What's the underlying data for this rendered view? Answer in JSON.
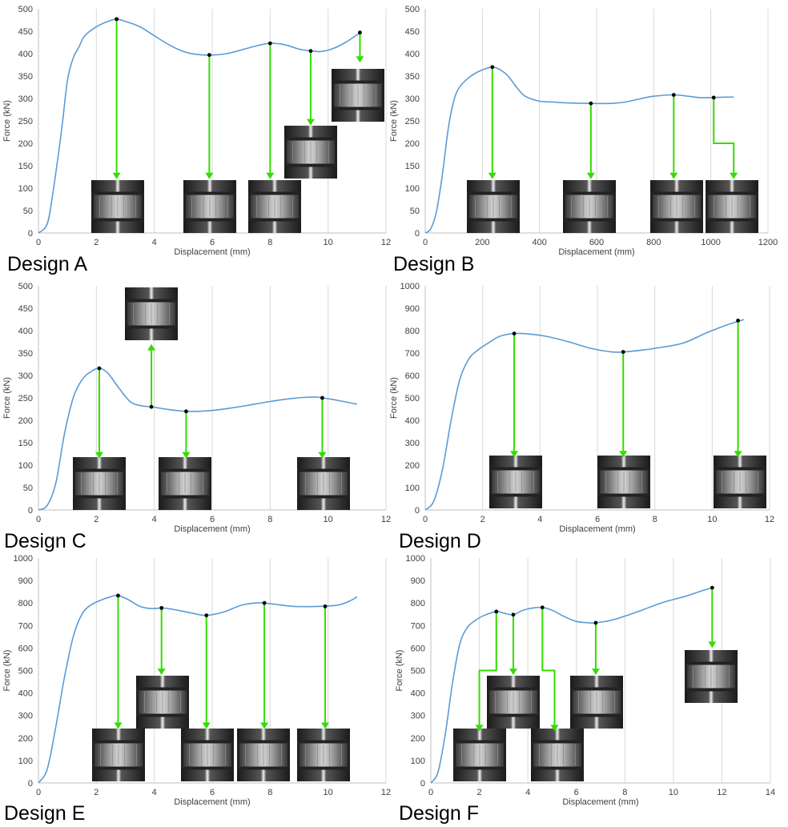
{
  "chart_data": [
    {
      "type": "line",
      "design_label": "Design A",
      "xlabel": "Displacement (mm)",
      "ylabel": "Force (kN)",
      "xlim": [
        0,
        12
      ],
      "ylim": [
        0,
        500
      ],
      "xticks": [
        0,
        2,
        4,
        6,
        8,
        10,
        12
      ],
      "yticks": [
        0,
        50,
        100,
        150,
        200,
        250,
        300,
        350,
        400,
        450,
        500
      ],
      "grid": "vertical",
      "line_color": "#5b9bd5",
      "arrow_color": "#33dd00",
      "series": [
        {
          "x": [
            0,
            0.3,
            0.5,
            0.8,
            1.0,
            1.2,
            1.4,
            1.6,
            2.0,
            2.4,
            2.7,
            3.0,
            3.5,
            4.0,
            4.5,
            5.0,
            5.5,
            6.0,
            6.5,
            7.0,
            7.5,
            8.0,
            8.5,
            9.0,
            9.4,
            9.8,
            10.2,
            10.6,
            11.0,
            11.1
          ],
          "y": [
            0,
            20,
            90,
            230,
            340,
            390,
            415,
            440,
            460,
            472,
            477,
            472,
            460,
            440,
            420,
            405,
            398,
            397,
            400,
            408,
            417,
            423,
            420,
            410,
            406,
            405,
            412,
            425,
            442,
            447
          ]
        }
      ],
      "markers": [
        {
          "x": 2.7,
          "y": 477
        },
        {
          "x": 5.9,
          "y": 397
        },
        {
          "x": 8.0,
          "y": 423
        },
        {
          "x": 9.4,
          "y": 406
        },
        {
          "x": 11.1,
          "y": 447
        }
      ]
    },
    {
      "type": "line",
      "design_label": "Design B",
      "xlabel": "Displacement (mm)",
      "ylabel": "Force (kN)",
      "xlim": [
        0,
        1200
      ],
      "ylim": [
        0,
        500
      ],
      "xticks": [
        0,
        200,
        400,
        600,
        800,
        1000,
        1200
      ],
      "yticks": [
        0,
        50,
        100,
        150,
        200,
        250,
        300,
        350,
        400,
        450,
        500
      ],
      "grid": "vertical",
      "line_color": "#5b9bd5",
      "arrow_color": "#33dd00",
      "series": [
        {
          "x": [
            0,
            20,
            40,
            60,
            80,
            100,
            120,
            150,
            180,
            210,
            235,
            260,
            290,
            320,
            350,
            400,
            450,
            500,
            580,
            650,
            700,
            750,
            800,
            870,
            920,
            960,
            1000,
            1050,
            1080
          ],
          "y": [
            0,
            10,
            50,
            130,
            230,
            295,
            325,
            345,
            358,
            366,
            370,
            365,
            350,
            325,
            305,
            294,
            292,
            290,
            289,
            289,
            292,
            299,
            305,
            308,
            305,
            302,
            302,
            303,
            303
          ]
        }
      ],
      "markers": [
        {
          "x": 235,
          "y": 370
        },
        {
          "x": 580,
          "y": 289
        },
        {
          "x": 870,
          "y": 308
        },
        {
          "x": 1010,
          "y": 302
        }
      ]
    },
    {
      "type": "line",
      "design_label": "Design C",
      "xlabel": "Displacement (mm)",
      "ylabel": "Force (kN)",
      "xlim": [
        0,
        12
      ],
      "ylim": [
        0,
        500
      ],
      "xticks": [
        0,
        2,
        4,
        6,
        8,
        10,
        12
      ],
      "yticks": [
        0,
        50,
        100,
        150,
        200,
        250,
        300,
        350,
        400,
        450,
        500
      ],
      "grid": "vertical",
      "line_color": "#5b9bd5",
      "arrow_color": "#33dd00",
      "series": [
        {
          "x": [
            0,
            0.3,
            0.6,
            0.9,
            1.2,
            1.5,
            1.8,
            2.1,
            2.4,
            2.8,
            3.2,
            3.6,
            3.9,
            4.5,
            5.1,
            5.8,
            6.5,
            7.2,
            8.0,
            8.8,
            9.5,
            9.8,
            10.2,
            10.6,
            11.0
          ],
          "y": [
            0,
            10,
            60,
            170,
            250,
            290,
            308,
            316,
            305,
            270,
            240,
            232,
            230,
            224,
            220,
            221,
            226,
            233,
            242,
            249,
            252,
            250,
            246,
            241,
            236
          ]
        }
      ],
      "markers": [
        {
          "x": 2.1,
          "y": 316
        },
        {
          "x": 3.9,
          "y": 230
        },
        {
          "x": 5.1,
          "y": 220
        },
        {
          "x": 9.8,
          "y": 250
        }
      ]
    },
    {
      "type": "line",
      "design_label": "Design D",
      "xlabel": "Displacement (mm)",
      "ylabel": "Force (kN)",
      "xlim": [
        0,
        12
      ],
      "ylim": [
        0,
        1000
      ],
      "xticks": [
        0,
        2,
        4,
        6,
        8,
        10,
        12
      ],
      "yticks": [
        0,
        100,
        200,
        300,
        400,
        500,
        600,
        700,
        800,
        900,
        1000
      ],
      "grid": "vertical",
      "line_color": "#5b9bd5",
      "arrow_color": "#33dd00",
      "series": [
        {
          "x": [
            0,
            0.3,
            0.6,
            0.9,
            1.2,
            1.5,
            1.8,
            2.2,
            2.6,
            3.1,
            3.6,
            4.2,
            5.0,
            5.8,
            6.5,
            6.9,
            7.5,
            8.2,
            9.0,
            9.8,
            10.5,
            11.0,
            11.1
          ],
          "y": [
            0,
            40,
            180,
            400,
            580,
            670,
            710,
            745,
            775,
            787,
            785,
            775,
            750,
            720,
            705,
            705,
            712,
            725,
            745,
            790,
            825,
            845,
            850
          ]
        }
      ],
      "markers": [
        {
          "x": 3.1,
          "y": 787
        },
        {
          "x": 6.9,
          "y": 705
        },
        {
          "x": 10.9,
          "y": 845
        }
      ]
    },
    {
      "type": "line",
      "design_label": "Design E",
      "xlabel": "Displacement (mm)",
      "ylabel": "Force (kN)",
      "xlim": [
        0,
        12
      ],
      "ylim": [
        0,
        1000
      ],
      "xticks": [
        0,
        2,
        4,
        6,
        8,
        10,
        12
      ],
      "yticks": [
        0,
        100,
        200,
        300,
        400,
        500,
        600,
        700,
        800,
        900,
        1000
      ],
      "grid": "vertical",
      "line_color": "#5b9bd5",
      "arrow_color": "#33dd00",
      "series": [
        {
          "x": [
            0,
            0.3,
            0.6,
            0.9,
            1.2,
            1.5,
            1.8,
            2.2,
            2.5,
            2.75,
            3.1,
            3.5,
            3.9,
            4.3,
            4.8,
            5.3,
            5.8,
            6.4,
            7.0,
            7.5,
            7.8,
            8.3,
            8.8,
            9.4,
            9.9,
            10.4,
            10.8,
            11.0
          ],
          "y": [
            0,
            60,
            250,
            470,
            650,
            750,
            790,
            815,
            828,
            833,
            815,
            785,
            775,
            778,
            768,
            755,
            745,
            760,
            790,
            800,
            800,
            792,
            785,
            784,
            786,
            792,
            812,
            828
          ]
        }
      ],
      "markers": [
        {
          "x": 2.75,
          "y": 833
        },
        {
          "x": 4.25,
          "y": 778
        },
        {
          "x": 5.8,
          "y": 745
        },
        {
          "x": 7.8,
          "y": 800
        },
        {
          "x": 9.9,
          "y": 785
        }
      ]
    },
    {
      "type": "line",
      "design_label": "Design F",
      "xlabel": "Displacement (mm)",
      "ylabel": "Force (kN)",
      "xlim": [
        0,
        14
      ],
      "ylim": [
        0,
        1000
      ],
      "xticks": [
        0,
        2,
        4,
        6,
        8,
        10,
        12,
        14
      ],
      "yticks": [
        0,
        100,
        200,
        300,
        400,
        500,
        600,
        700,
        800,
        900,
        1000
      ],
      "grid": "vertical",
      "line_color": "#5b9bd5",
      "arrow_color": "#33dd00",
      "series": [
        {
          "x": [
            0,
            0.3,
            0.6,
            0.9,
            1.2,
            1.5,
            1.8,
            2.2,
            2.7,
            3.0,
            3.4,
            3.8,
            4.2,
            4.6,
            5.0,
            5.5,
            6.0,
            6.5,
            6.8,
            7.5,
            8.5,
            9.5,
            10.5,
            11.2,
            11.6
          ],
          "y": [
            0,
            50,
            220,
            450,
            620,
            690,
            720,
            745,
            762,
            755,
            748,
            768,
            778,
            780,
            768,
            740,
            718,
            712,
            712,
            725,
            760,
            800,
            830,
            855,
            868
          ]
        }
      ],
      "markers": [
        {
          "x": 2.7,
          "y": 762
        },
        {
          "x": 3.4,
          "y": 748
        },
        {
          "x": 4.6,
          "y": 780
        },
        {
          "x": 6.8,
          "y": 712
        },
        {
          "x": 11.6,
          "y": 868
        }
      ]
    }
  ]
}
